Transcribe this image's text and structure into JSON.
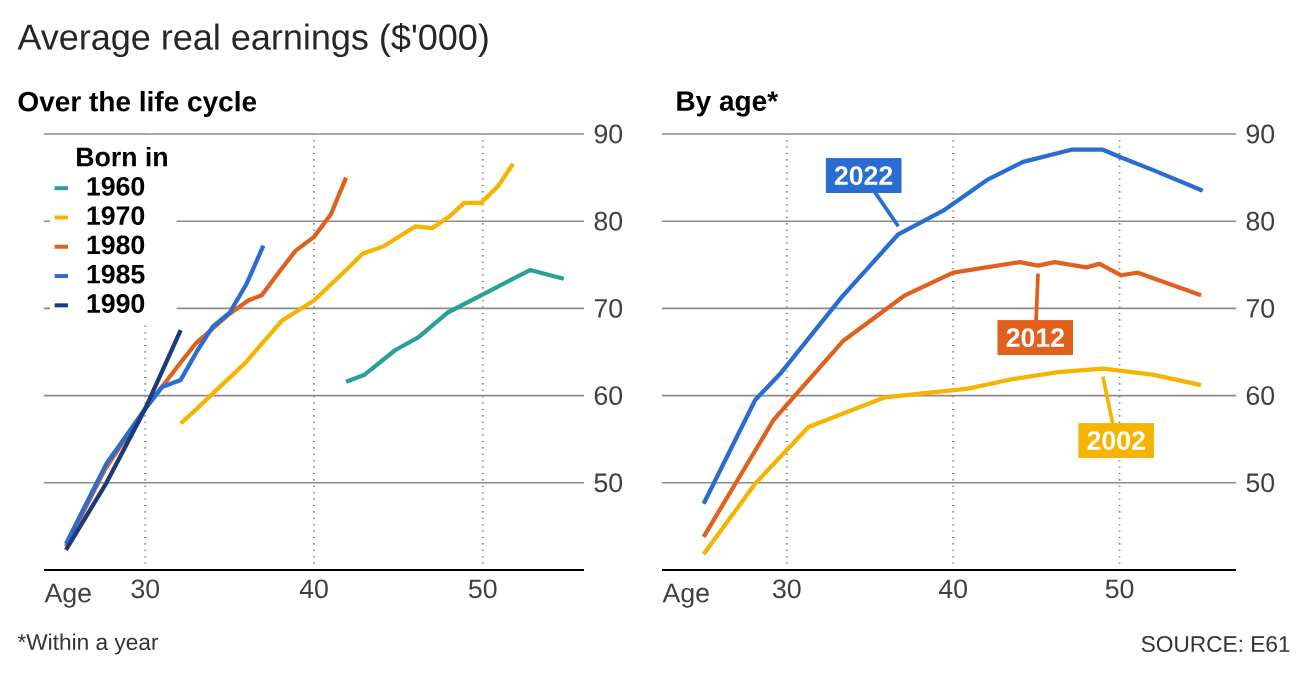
{
  "chart_data": [
    {
      "type": "line",
      "title": "Average real earnings ($'000)",
      "subtitle": "Over the life cycle",
      "xlabel": "Age",
      "legend_title": "Born in",
      "legend": "top left",
      "grid": true,
      "xlim": [
        24,
        56
      ],
      "xticks": [
        30,
        40,
        50
      ],
      "ylim": [
        40,
        90
      ],
      "yticks": [
        50,
        60,
        70,
        80,
        90
      ],
      "annotations": [
        "*Within a year"
      ],
      "series": [
        {
          "name": "1960",
          "color": "#2aa198",
          "x": [
            41.9,
            43,
            44.8,
            46.2,
            47.9,
            49.9,
            52.8,
            54.8
          ],
          "values": [
            61.6,
            62.4,
            65.2,
            66.7,
            69.5,
            71.5,
            74.4,
            73.4
          ]
        },
        {
          "name": "1970",
          "color": "#f4b400",
          "x": [
            32.1,
            33,
            34.2,
            35.9,
            38.1,
            40,
            41.9,
            42.9,
            44.1,
            46,
            47,
            48,
            48.9,
            49.9,
            50.9,
            51.8
          ],
          "values": [
            56.8,
            58.4,
            60.6,
            63.7,
            68.6,
            70.9,
            74.4,
            76.3,
            77.1,
            79.4,
            79.2,
            80.5,
            82.1,
            82.1,
            84.0,
            86.6
          ]
        },
        {
          "name": "1980",
          "color": "#e0611e",
          "x": [
            25.3,
            27.6,
            30,
            31.9,
            33,
            35,
            36.1,
            36.9,
            37.9,
            38.9,
            40,
            41,
            41.9
          ],
          "values": [
            42.7,
            51.5,
            58.5,
            63.3,
            66.0,
            69.4,
            70.9,
            71.5,
            74.1,
            76.6,
            78.2,
            80.8,
            85.0
          ]
        },
        {
          "name": "1985",
          "color": "#2a6dd0",
          "x": [
            25.3,
            26.5,
            27.7,
            28.4,
            30,
            31,
            32.1,
            33.1,
            34,
            35,
            36,
            37
          ],
          "values": [
            43.0,
            47.6,
            52.2,
            54.1,
            58.5,
            61.0,
            61.8,
            65.2,
            67.9,
            69.5,
            72.8,
            77.2
          ]
        },
        {
          "name": "1990",
          "color": "#1d3b7a",
          "x": [
            25.3,
            27.7,
            30,
            32.1
          ],
          "values": [
            42.3,
            50.0,
            58.5,
            67.5
          ]
        }
      ]
    },
    {
      "type": "line",
      "title": "By age*",
      "xlabel": "Age",
      "grid": true,
      "xlim": [
        22.5,
        57
      ],
      "xticks": [
        30,
        40,
        50
      ],
      "ylim": [
        40,
        90
      ],
      "yticks": [
        50,
        60,
        70,
        80,
        90
      ],
      "annotations": [
        "SOURCE: E61"
      ],
      "series": [
        {
          "name": "2022",
          "color": "#2a6dd0",
          "x": [
            25.0,
            28.1,
            29.6,
            33.3,
            36.7,
            39.4,
            42.1,
            44.2,
            47.1,
            49.0,
            50.1,
            52.1,
            55.0
          ],
          "values": [
            47.6,
            59.5,
            62.5,
            71.3,
            78.5,
            81.2,
            84.8,
            86.8,
            88.2,
            88.2,
            87.3,
            85.8,
            83.5
          ]
        },
        {
          "name": "2012",
          "color": "#e0611e",
          "x": [
            25.0,
            29.2,
            33.4,
            37.1,
            40,
            44,
            45.1,
            46.1,
            48,
            48.8,
            50.1,
            51.1,
            54.9
          ],
          "values": [
            43.8,
            57.2,
            66.3,
            71.5,
            74.1,
            75.3,
            74.9,
            75.3,
            74.7,
            75.1,
            73.8,
            74.1,
            71.5
          ]
        },
        {
          "name": "2002",
          "color": "#f4b400",
          "x": [
            25.0,
            28.1,
            31.3,
            35.9,
            40.9,
            43.6,
            46.3,
            49.0,
            52.0,
            54.9
          ],
          "values": [
            41.8,
            49.9,
            56.4,
            59.8,
            60.8,
            61.9,
            62.7,
            63.1,
            62.4,
            61.2
          ]
        }
      ]
    }
  ]
}
